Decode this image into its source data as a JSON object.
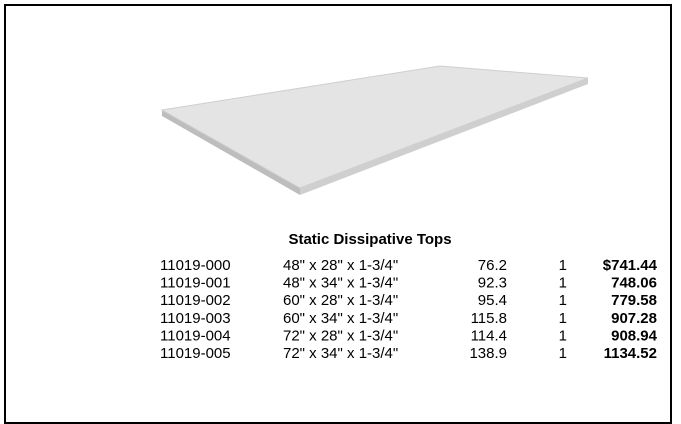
{
  "title": "Static Dissipative Tops",
  "table": {
    "rows": [
      [
        "11019-000",
        "48\" x 28\" x 1-3/4\"",
        "76.2",
        "1",
        "$741.44"
      ],
      [
        "11019-001",
        "48\" x 34\" x 1-3/4\"",
        "92.3",
        "1",
        "748.06"
      ],
      [
        "11019-002",
        "60\" x 28\" x 1-3/4\"",
        "95.4",
        "1",
        "779.58"
      ],
      [
        "11019-003",
        "60\" x 34\" x 1-3/4\"",
        "115.8",
        "1",
        "907.28"
      ],
      [
        "11019-004",
        "72\" x 28\" x 1-3/4\"",
        "114.4",
        "1",
        "908.94"
      ],
      [
        "11019-005",
        "72\" x 34\" x 1-3/4\"",
        "138.9",
        "1",
        "1134.52"
      ]
    ]
  }
}
